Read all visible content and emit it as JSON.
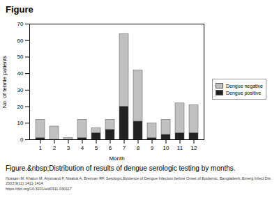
{
  "chart_data": {
    "type": "bar",
    "title": "Figure",
    "caption": "Figure.&nbsp;Distribution of results of dengue serologic testing by months.",
    "citation": [
      "Hossain M, Khatun M, Arjumand F, Nisaluk A, Breiman RF. Serologic Evidence of Dengue Infection before Onset of Epidemic, Bangladesh. Emerg Infect Dis. 2003;9(11):1411-1414.",
      "https://doi.org/10.3201/eid0911.030117"
    ],
    "x_label": "Month",
    "y_label": "No. of febrile patients",
    "categories": [
      "1",
      "2",
      "3",
      "4",
      "5",
      "6",
      "7",
      "8",
      "9",
      "10",
      "11",
      "12"
    ],
    "series": [
      {
        "name": "Dengue positive",
        "color": "#222222",
        "values": [
          1,
          0,
          0,
          1,
          4,
          6,
          20,
          11,
          1,
          3,
          4,
          4
        ]
      },
      {
        "name": "Dengue negative",
        "color": "#c0c0c0",
        "values": [
          11,
          8,
          1,
          11,
          3,
          6,
          44,
          31,
          9,
          9,
          18,
          17
        ]
      }
    ],
    "stacked": true,
    "ylim": [
      0,
      70
    ],
    "yticks": [
      0,
      10,
      20,
      30,
      40,
      50,
      60,
      70
    ],
    "grid": false,
    "legend": "right"
  }
}
